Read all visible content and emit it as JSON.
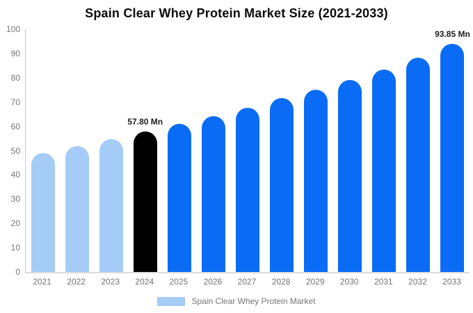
{
  "title": "Spain Clear Whey Protein Market Size (2021-2033)",
  "legend": {
    "label": "Spain Clear Whey Protein Market",
    "swatch_color": "#a5ccf7"
  },
  "y_axis": {
    "ticks": [
      0,
      10,
      20,
      30,
      40,
      50,
      60,
      70,
      80,
      90,
      100
    ],
    "min": 0,
    "max": 100
  },
  "colors": {
    "historical_bar": "#a5ccf7",
    "base_year_bar": "#000000",
    "forecast_bar": "#0a6cf5",
    "axis_text": "#757575",
    "value_label_text": "#1c1c1c",
    "title_text": "#0a0a0a"
  },
  "chart_data": {
    "type": "bar",
    "title": "Spain Clear Whey Protein Market Size (2021-2033)",
    "xlabel": "",
    "ylabel": "",
    "ylim": [
      0,
      100
    ],
    "grid": false,
    "legend_position": "bottom",
    "value_unit": "Mn",
    "categories": [
      "2021",
      "2022",
      "2023",
      "2024",
      "2025",
      "2026",
      "2027",
      "2028",
      "2029",
      "2030",
      "2031",
      "2032",
      "2033"
    ],
    "values": [
      48.9,
      51.9,
      54.7,
      57.8,
      60.9,
      64.2,
      67.6,
      71.5,
      75.0,
      79.0,
      83.4,
      88.2,
      93.85
    ],
    "bar_colors": [
      "#a5ccf7",
      "#a5ccf7",
      "#a5ccf7",
      "#000000",
      "#0a6cf5",
      "#0a6cf5",
      "#0a6cf5",
      "#0a6cf5",
      "#0a6cf5",
      "#0a6cf5",
      "#0a6cf5",
      "#0a6cf5",
      "#0a6cf5"
    ],
    "annotations": [
      {
        "category": "2024",
        "text": "57.80 Mn"
      },
      {
        "category": "2033",
        "text": "93.85 Mn"
      }
    ]
  }
}
